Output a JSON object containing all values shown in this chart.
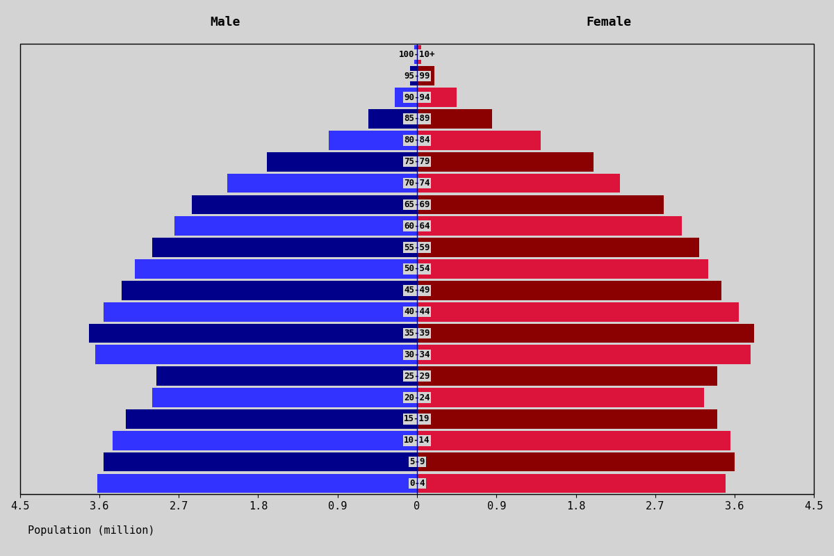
{
  "age_groups": [
    "0-4",
    "5-9",
    "10-14",
    "15-19",
    "20-24",
    "25-29",
    "30-34",
    "35-39",
    "40-44",
    "45-49",
    "50-54",
    "55-59",
    "60-64",
    "65-69",
    "70-74",
    "75-79",
    "80-84",
    "85-89",
    "90-94",
    "95-99",
    "100-10+"
  ],
  "male": [
    3.62,
    3.55,
    3.45,
    3.3,
    3.0,
    2.95,
    3.65,
    3.72,
    3.55,
    3.35,
    3.2,
    3.0,
    2.75,
    2.55,
    2.15,
    1.7,
    1.0,
    0.55,
    0.25,
    0.08,
    0.03
  ],
  "female": [
    3.5,
    3.6,
    3.55,
    3.4,
    3.25,
    3.4,
    3.78,
    3.82,
    3.65,
    3.45,
    3.3,
    3.2,
    3.0,
    2.8,
    2.3,
    2.0,
    1.4,
    0.85,
    0.45,
    0.2,
    0.05
  ],
  "male_bright": "#3333FF",
  "male_dark": "#00008B",
  "female_bright": "#DC143C",
  "female_dark": "#8B0000",
  "xlim": 4.5,
  "xlabel": "Population (million)",
  "male_label": "Male",
  "female_label": "Female",
  "background_color": "#D3D3D3",
  "bar_height": 0.9,
  "title_fontsize": 13,
  "axis_fontsize": 11,
  "tick_fontsize": 11,
  "label_fontsize": 9
}
